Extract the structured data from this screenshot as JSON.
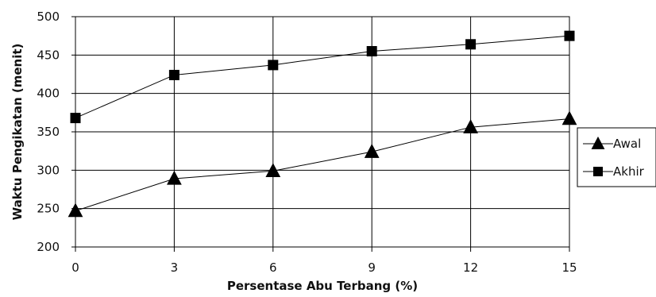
{
  "chart_data": {
    "type": "line",
    "categories": [
      "0",
      "3",
      "6",
      "9",
      "12",
      "15"
    ],
    "x": [
      0,
      3,
      6,
      9,
      12,
      15
    ],
    "xlabel": "Persentase Abu Terbang (%)",
    "ylabel": "Waktu Pengikatan (menit)",
    "ylim": [
      200,
      500
    ],
    "yticks": [
      200,
      250,
      300,
      350,
      400,
      450,
      500
    ],
    "grid": true,
    "legend_position": "right",
    "series": [
      {
        "name": "Awal",
        "marker": "triangle",
        "values": [
          247,
          289,
          299,
          324,
          356,
          367
        ]
      },
      {
        "name": "Akhir",
        "marker": "square",
        "values": [
          368,
          424,
          437,
          455,
          464,
          475
        ]
      }
    ]
  }
}
